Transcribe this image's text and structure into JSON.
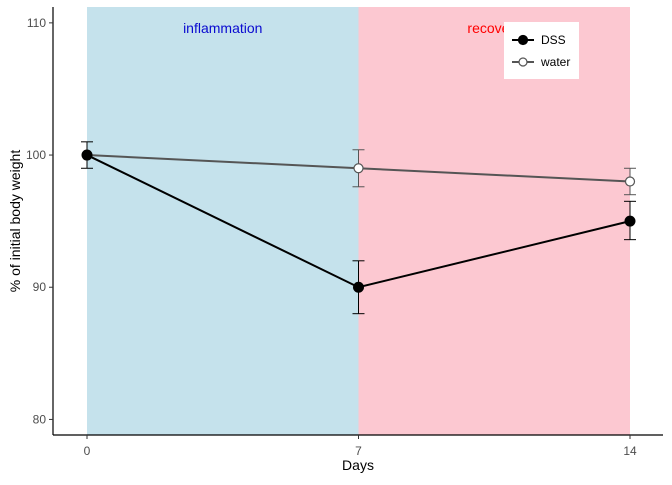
{
  "chart_data": {
    "type": "line",
    "xlabel": "Days",
    "ylabel": "% of initial body weight",
    "x": [
      0,
      7,
      14
    ],
    "xticks": [
      0,
      7,
      14
    ],
    "yticks": [
      80,
      90,
      100,
      110
    ],
    "xlim": [
      0,
      14
    ],
    "ylim": [
      79.2,
      111.2
    ],
    "grid": false,
    "legend_position": "top-right",
    "phases": [
      {
        "label": "inflammation",
        "from": 0,
        "to": 7,
        "fill": "#c5e2ec",
        "text_color": "#0a0ad0"
      },
      {
        "label": "recovery",
        "from": 7,
        "to": 14,
        "fill": "#fcc8d1",
        "text_color": "#ff0000"
      }
    ],
    "series": [
      {
        "name": "water",
        "values": [
          100,
          99,
          98
        ],
        "error": [
          [
            100,
            100
          ],
          [
            97.6,
            100.4
          ],
          [
            97,
            99
          ]
        ],
        "color": "#555555",
        "marker": "open-circle"
      },
      {
        "name": "DSS",
        "values": [
          100,
          90,
          95
        ],
        "error": [
          [
            99,
            101
          ],
          [
            88,
            92
          ],
          [
            93.6,
            96.5
          ]
        ],
        "color": "#000000",
        "marker": "filled-circle"
      }
    ],
    "legend": [
      "DSS",
      "water"
    ]
  }
}
